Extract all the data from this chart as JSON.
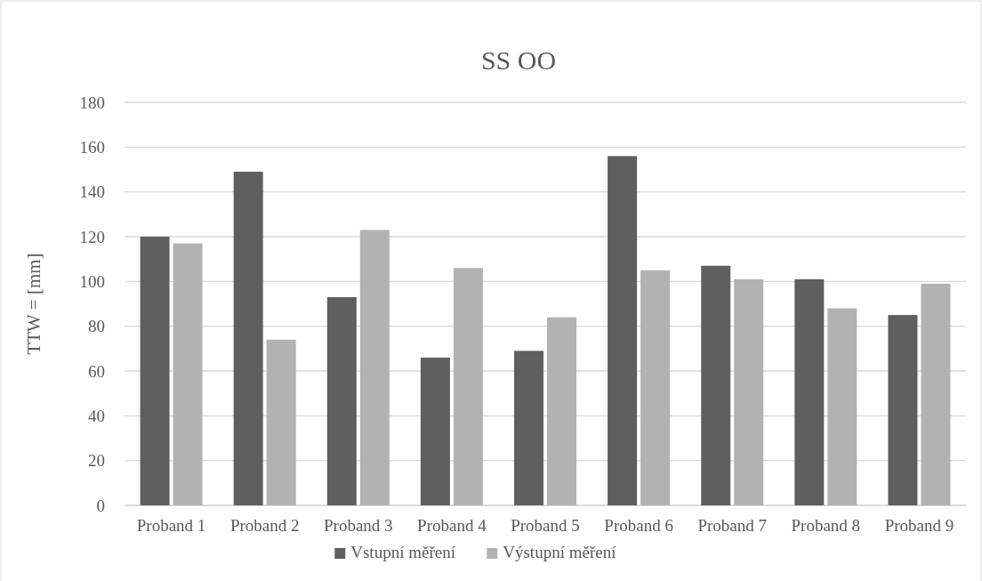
{
  "chart_data": {
    "type": "bar",
    "title": "SS OO",
    "ylabel": "TTW = [mm]",
    "categories": [
      "Proband 1",
      "Proband 2",
      "Proband 3",
      "Proband 4",
      "Proband 5",
      "Proband 6",
      "Proband 7",
      "Proband 8",
      "Proband 9"
    ],
    "series": [
      {
        "name": "Vstupní měření",
        "color": "#5f5f5f",
        "values": [
          120,
          149,
          93,
          66,
          69,
          156,
          107,
          101,
          85
        ]
      },
      {
        "name": "Výstupní měření",
        "color": "#b2b2b2",
        "values": [
          117,
          74,
          123,
          106,
          84,
          105,
          101,
          88,
          99
        ]
      }
    ],
    "ylim": [
      0,
      180
    ],
    "yticks": [
      0,
      20,
      40,
      60,
      80,
      100,
      120,
      140,
      160,
      180
    ],
    "grid": "y",
    "legend": "bottom"
  }
}
